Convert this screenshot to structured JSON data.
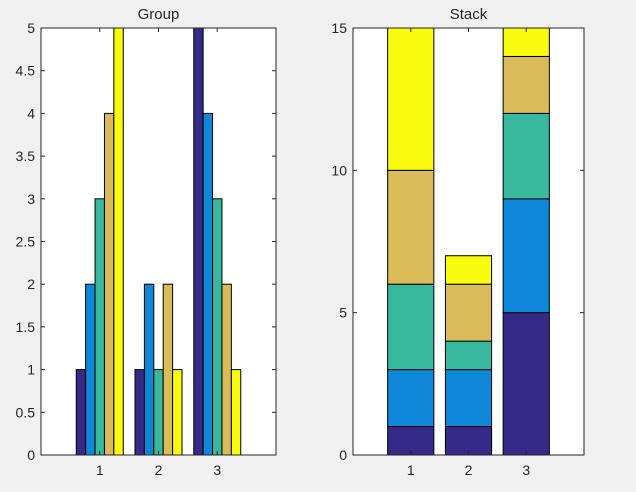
{
  "chart_data": [
    {
      "type": "bar",
      "mode": "grouped",
      "title": "Group",
      "xlabel": "",
      "ylabel": "",
      "categories": [
        "1",
        "2",
        "3"
      ],
      "xlim": [
        0,
        4
      ],
      "ylim": [
        0,
        5
      ],
      "yticks": [
        "0",
        "0.5",
        "1",
        "1.5",
        "2",
        "2.5",
        "3",
        "3.5",
        "4",
        "4.5",
        "5"
      ],
      "grid": false,
      "series": [
        {
          "values": [
            1,
            1,
            5
          ],
          "color": "#352a87"
        },
        {
          "values": [
            2,
            2,
            4
          ],
          "color": "#0f87d8"
        },
        {
          "values": [
            3,
            1,
            3
          ],
          "color": "#38b99e"
        },
        {
          "values": [
            4,
            2,
            2
          ],
          "color": "#d9bb59"
        },
        {
          "values": [
            5,
            1,
            1
          ],
          "color": "#f9fb0e"
        }
      ]
    },
    {
      "type": "bar",
      "mode": "stacked",
      "title": "Stack",
      "xlabel": "",
      "ylabel": "",
      "categories": [
        "1",
        "2",
        "3"
      ],
      "xlim": [
        0,
        4
      ],
      "ylim": [
        0,
        15
      ],
      "yticks": [
        "0",
        "5",
        "10",
        "15"
      ],
      "grid": false,
      "series": [
        {
          "values": [
            1,
            1,
            5
          ],
          "color": "#352a87"
        },
        {
          "values": [
            2,
            2,
            4
          ],
          "color": "#0f87d8"
        },
        {
          "values": [
            3,
            1,
            3
          ],
          "color": "#38b99e"
        },
        {
          "values": [
            4,
            2,
            2
          ],
          "color": "#d9bb59"
        },
        {
          "values": [
            5,
            1,
            1
          ],
          "color": "#f9fb0e"
        }
      ]
    }
  ]
}
